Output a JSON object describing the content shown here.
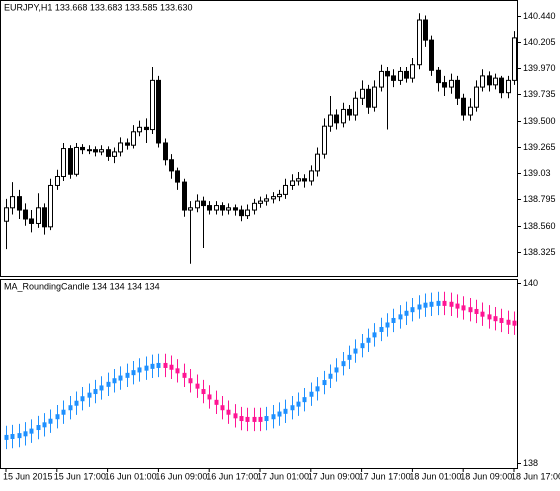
{
  "chart_data": [
    {
      "type": "candlestick",
      "title": "EURJPY,H1  133.668 133.683 133.585 133.630",
      "up_color": "#ffffff",
      "down_color": "#000000",
      "line_color": "#000000",
      "grid": false,
      "ylim": [
        138.11,
        140.57
      ],
      "yticks": [
        {
          "value": 140.44,
          "label": "140.440"
        },
        140.205,
        {
          "value": 139.97,
          "label": "139.970"
        },
        139.735,
        {
          "value": 139.5,
          "label": "139.500"
        },
        139.265,
        139.03,
        138.795,
        {
          "value": 138.56,
          "label": "138.560"
        },
        138.325
      ],
      "open": [
        138.6,
        138.72,
        138.82,
        138.7,
        138.62,
        138.58,
        138.72,
        138.55,
        138.92,
        139.0,
        139.25,
        139.02,
        139.26,
        139.24,
        139.24,
        139.22,
        139.24,
        139.18,
        139.22,
        139.3,
        139.28,
        139.4,
        139.44,
        139.42,
        139.86,
        139.3,
        139.15,
        139.05,
        138.95,
        138.7,
        138.72,
        138.78,
        138.74,
        138.7,
        138.74,
        138.7,
        138.72,
        138.7,
        138.65,
        138.7,
        138.76,
        138.78,
        138.8,
        138.82,
        138.84,
        138.92,
        138.96,
        138.98,
        138.96,
        139.05,
        139.2,
        139.45,
        139.55,
        139.48,
        139.6,
        139.55,
        139.7,
        139.78,
        139.62,
        139.8,
        139.94,
        139.9,
        139.86,
        139.94,
        139.88,
        140.0,
        140.4,
        140.22,
        139.95,
        139.84,
        139.8,
        139.86,
        139.7,
        139.55,
        139.62,
        139.8,
        139.9,
        139.82,
        139.88,
        139.75,
        139.86
      ],
      "high": [
        138.8,
        138.95,
        138.88,
        138.76,
        138.7,
        138.85,
        138.76,
        138.98,
        139.06,
        139.3,
        139.28,
        139.3,
        139.29,
        139.28,
        139.27,
        139.28,
        139.27,
        139.26,
        139.35,
        139.34,
        139.46,
        139.5,
        139.52,
        139.98,
        139.9,
        139.34,
        139.2,
        139.08,
        138.98,
        138.78,
        138.84,
        138.82,
        138.78,
        138.78,
        138.77,
        138.76,
        138.75,
        138.74,
        138.75,
        138.8,
        138.82,
        138.84,
        138.86,
        138.88,
        138.98,
        139.02,
        139.04,
        139.02,
        139.1,
        139.26,
        139.52,
        139.72,
        139.6,
        139.66,
        139.64,
        139.76,
        139.86,
        139.82,
        139.86,
        140.0,
        139.98,
        139.96,
        139.98,
        139.98,
        140.06,
        140.46,
        140.44,
        140.26,
        139.98,
        139.9,
        139.92,
        139.9,
        139.74,
        139.7,
        139.86,
        139.96,
        139.94,
        139.92,
        139.9,
        139.9,
        140.3
      ],
      "low": [
        138.35,
        138.66,
        138.62,
        138.56,
        138.5,
        138.54,
        138.48,
        138.52,
        138.88,
        138.96,
        138.98,
        139.0,
        139.2,
        139.2,
        139.18,
        139.19,
        139.14,
        139.12,
        139.18,
        139.24,
        139.25,
        139.36,
        139.3,
        139.38,
        139.26,
        139.1,
        138.98,
        138.88,
        138.64,
        138.22,
        138.68,
        138.36,
        138.66,
        138.66,
        138.65,
        138.66,
        138.65,
        138.6,
        138.62,
        138.66,
        138.72,
        138.74,
        138.76,
        138.78,
        138.8,
        138.88,
        138.92,
        138.9,
        138.92,
        139.0,
        139.16,
        139.4,
        139.42,
        139.44,
        139.5,
        139.5,
        139.64,
        139.56,
        139.58,
        139.76,
        139.42,
        139.8,
        139.82,
        139.84,
        139.84,
        139.96,
        140.16,
        139.9,
        139.76,
        139.72,
        139.74,
        139.64,
        139.5,
        139.5,
        139.58,
        139.76,
        139.76,
        139.78,
        139.7,
        139.7,
        139.82
      ],
      "close": [
        138.72,
        138.82,
        138.7,
        138.62,
        138.58,
        138.72,
        138.55,
        138.92,
        139.0,
        139.25,
        139.02,
        139.26,
        139.24,
        139.24,
        139.22,
        139.24,
        139.18,
        139.22,
        139.3,
        139.28,
        139.4,
        139.44,
        139.42,
        139.86,
        139.3,
        139.15,
        139.05,
        138.95,
        138.7,
        138.72,
        138.78,
        138.74,
        138.7,
        138.74,
        138.7,
        138.72,
        138.7,
        138.65,
        138.7,
        138.76,
        138.78,
        138.8,
        138.82,
        138.84,
        138.92,
        138.96,
        138.98,
        138.96,
        139.05,
        139.2,
        139.45,
        139.55,
        139.48,
        139.6,
        139.55,
        139.7,
        139.78,
        139.62,
        139.8,
        139.94,
        139.9,
        139.86,
        139.94,
        139.88,
        140.0,
        140.4,
        140.22,
        139.95,
        139.84,
        139.8,
        139.86,
        139.7,
        139.55,
        139.62,
        139.8,
        139.9,
        139.82,
        139.88,
        139.75,
        139.86,
        140.24
      ]
    },
    {
      "type": "rounding-candle",
      "title": "MA_RoundingCandle 134 134 134 134",
      "up_color": "#1e90ff",
      "down_color": "#ff1493",
      "grid": false,
      "ylim": [
        137.94,
        140.03
      ],
      "yticks": [
        140,
        138
      ],
      "categories": [
        "15 Jun 2015",
        null,
        null,
        null,
        null,
        null,
        null,
        null,
        "15 Jun 17:00",
        null,
        null,
        null,
        null,
        null,
        null,
        null,
        "16 Jun 01:00",
        null,
        null,
        null,
        null,
        null,
        null,
        null,
        "16 Jun 09:00",
        null,
        null,
        null,
        null,
        null,
        null,
        null,
        "16 Jun 17:00",
        null,
        null,
        null,
        null,
        null,
        null,
        null,
        "17 Jun 01:00",
        null,
        null,
        null,
        null,
        null,
        null,
        null,
        "17 Jun 09:00",
        null,
        null,
        null,
        null,
        null,
        null,
        null,
        "17 Jun 17:00",
        null,
        null,
        null,
        null,
        null,
        null,
        null,
        "18 Jun 01:00",
        null,
        null,
        null,
        null,
        null,
        null,
        null,
        "18 Jun 09:00",
        null,
        null,
        null,
        null,
        null,
        null,
        null,
        "18 Jun 17:00"
      ],
      "values": [
        138.28,
        138.29,
        138.3,
        138.32,
        138.35,
        138.39,
        138.42,
        138.46,
        138.51,
        138.56,
        138.61,
        138.66,
        138.71,
        138.75,
        138.79,
        138.83,
        138.87,
        138.91,
        138.94,
        138.97,
        139.0,
        139.03,
        139.05,
        139.07,
        139.08,
        139.08,
        139.06,
        139.02,
        138.97,
        138.91,
        138.85,
        138.79,
        138.73,
        138.67,
        138.61,
        138.56,
        138.52,
        138.49,
        138.48,
        138.48,
        138.48,
        138.49,
        138.51,
        138.54,
        138.57,
        138.61,
        138.65,
        138.7,
        138.76,
        138.82,
        138.89,
        138.96,
        139.03,
        139.1,
        139.17,
        139.24,
        139.3,
        139.36,
        139.42,
        139.48,
        139.53,
        139.58,
        139.62,
        139.66,
        139.7,
        139.73,
        139.75,
        139.76,
        139.77,
        139.77,
        139.76,
        139.74,
        139.72,
        139.7,
        139.68,
        139.65,
        139.62,
        139.6,
        139.58,
        139.56,
        139.55
      ],
      "high": [
        138.41,
        138.42,
        138.43,
        138.45,
        138.48,
        138.52,
        138.55,
        138.59,
        138.64,
        138.69,
        138.74,
        138.79,
        138.84,
        138.88,
        138.92,
        138.96,
        139.0,
        139.04,
        139.07,
        139.1,
        139.13,
        139.16,
        139.18,
        139.2,
        139.21,
        139.21,
        139.19,
        139.15,
        139.1,
        139.04,
        138.98,
        138.92,
        138.86,
        138.8,
        138.74,
        138.69,
        138.65,
        138.62,
        138.61,
        138.61,
        138.61,
        138.62,
        138.64,
        138.67,
        138.7,
        138.74,
        138.78,
        138.83,
        138.89,
        138.95,
        139.02,
        139.09,
        139.16,
        139.23,
        139.3,
        139.37,
        139.43,
        139.49,
        139.55,
        139.61,
        139.66,
        139.71,
        139.75,
        139.79,
        139.83,
        139.86,
        139.88,
        139.89,
        139.9,
        139.9,
        139.89,
        139.87,
        139.85,
        139.83,
        139.81,
        139.78,
        139.75,
        139.73,
        139.71,
        139.69,
        139.68
      ],
      "low": [
        138.15,
        138.16,
        138.17,
        138.19,
        138.22,
        138.26,
        138.29,
        138.33,
        138.38,
        138.43,
        138.48,
        138.53,
        138.58,
        138.62,
        138.66,
        138.7,
        138.74,
        138.78,
        138.81,
        138.84,
        138.87,
        138.9,
        138.92,
        138.94,
        138.95,
        138.95,
        138.93,
        138.89,
        138.84,
        138.78,
        138.72,
        138.66,
        138.6,
        138.54,
        138.48,
        138.43,
        138.39,
        138.36,
        138.35,
        138.35,
        138.35,
        138.36,
        138.38,
        138.41,
        138.44,
        138.48,
        138.52,
        138.57,
        138.63,
        138.69,
        138.76,
        138.83,
        138.9,
        138.97,
        139.04,
        139.11,
        139.17,
        139.23,
        139.29,
        139.35,
        139.4,
        139.45,
        139.49,
        139.53,
        139.57,
        139.6,
        139.62,
        139.63,
        139.64,
        139.64,
        139.63,
        139.61,
        139.59,
        139.57,
        139.55,
        139.52,
        139.49,
        139.47,
        139.45,
        139.43,
        139.42
      ]
    }
  ]
}
